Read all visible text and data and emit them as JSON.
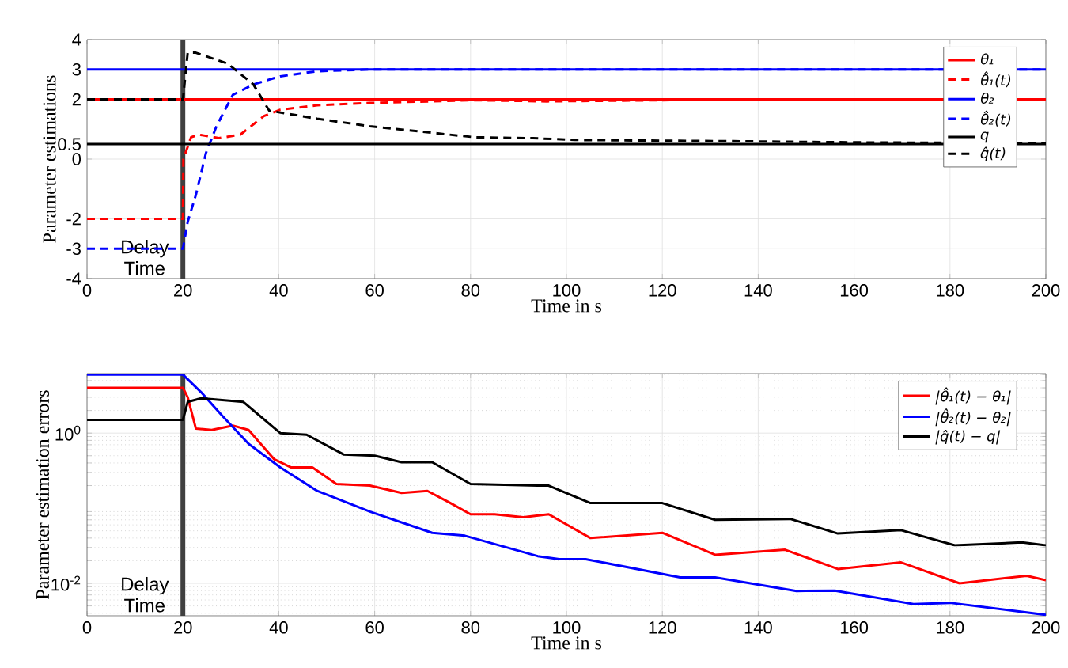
{
  "chart_data": [
    {
      "type": "line",
      "xlabel": "Time in s",
      "ylabel": "Parameter estimations",
      "xlim": [
        0,
        200
      ],
      "ylim": [
        -4,
        4
      ],
      "xticks": [
        0,
        20,
        40,
        60,
        80,
        100,
        120,
        140,
        160,
        180,
        200
      ],
      "yticks": [
        -4,
        -3,
        -2,
        0,
        0.5,
        2,
        3,
        4
      ],
      "grid": true,
      "legend": "top right",
      "ref_lines": [
        {
          "axis": "x",
          "value": 20,
          "label": "Delay Time",
          "color": "#404040"
        }
      ],
      "series": [
        {
          "name": "θ₁",
          "color": "#ff0000",
          "line_style": "solid",
          "x": [
            0,
            200
          ],
          "values": [
            2,
            2
          ]
        },
        {
          "name": "θ̂₁(t)",
          "color": "#ff0000",
          "line_style": "dashed",
          "x": [
            0,
            20,
            20.1,
            21.7,
            23.3,
            27.5,
            32,
            36.9,
            40.3,
            48,
            59,
            81,
            96,
            120,
            160,
            200
          ],
          "values": [
            -2,
            -2,
            0,
            0.73,
            0.82,
            0.7,
            0.82,
            1.44,
            1.65,
            1.8,
            1.88,
            1.97,
            1.93,
            1.97,
            1.99,
            2
          ]
        },
        {
          "name": "θ₂",
          "color": "#0000ff",
          "line_style": "solid",
          "x": [
            0,
            200
          ],
          "values": [
            3,
            3
          ]
        },
        {
          "name": "θ̂₂(t)",
          "color": "#0000ff",
          "line_style": "dashed",
          "x": [
            0,
            20,
            21,
            22.7,
            24.8,
            27,
            30.4,
            34.7,
            40.3,
            48,
            59,
            100,
            200
          ],
          "values": [
            -3,
            -3,
            -2.1,
            -1.2,
            0.2,
            1.1,
            2.15,
            2.5,
            2.77,
            2.94,
            3.0,
            3.0,
            3.0
          ]
        },
        {
          "name": "q",
          "color": "#000000",
          "line_style": "solid",
          "x": [
            0,
            200
          ],
          "values": [
            0.5,
            0.5
          ]
        },
        {
          "name": "q̂(t)",
          "color": "#000000",
          "line_style": "dashed",
          "x": [
            0,
            20,
            21,
            22.7,
            29.3,
            34.7,
            38,
            48,
            59,
            75.5,
            81,
            93,
            101.8,
            134.8,
            161,
            200
          ],
          "values": [
            2,
            2,
            3.56,
            3.56,
            3.2,
            2.5,
            1.62,
            1.35,
            1.1,
            0.82,
            0.73,
            0.7,
            0.64,
            0.6,
            0.56,
            0.53
          ]
        }
      ]
    },
    {
      "type": "line",
      "xlabel": "Time in s",
      "ylabel": "Parameter estimation errors",
      "xlim": [
        0,
        200
      ],
      "ylim": [
        0.0037,
        6.2
      ],
      "log": true,
      "xticks": [
        0,
        20,
        40,
        60,
        80,
        100,
        120,
        140,
        160,
        180,
        200
      ],
      "yticks": [
        {
          "value": 0.01,
          "label": "10$^{-2}$"
        },
        {
          "value": 1,
          "label": "10$^{0}$"
        }
      ],
      "grid": true,
      "legend": "top right",
      "ref_lines": [
        {
          "axis": "x",
          "value": 20,
          "label": "Delay Time",
          "color": "#404040"
        }
      ],
      "series": [
        {
          "name": "|θ̂₁(t) − θ₁|",
          "color": "#ff0000",
          "x": [
            0,
            20,
            21,
            22.7,
            26,
            30.4,
            33.7,
            39,
            42.5,
            47,
            52,
            59,
            65.6,
            71,
            75.5,
            80,
            85,
            91,
            96.3,
            105,
            120,
            131,
            145.6,
            156.6,
            169.8,
            182,
            196,
            200
          ],
          "values": [
            4,
            4,
            3.0,
            1.15,
            1.1,
            1.26,
            1.1,
            0.45,
            0.35,
            0.35,
            0.21,
            0.2,
            0.16,
            0.17,
            0.12,
            0.083,
            0.083,
            0.076,
            0.083,
            0.04,
            0.047,
            0.024,
            0.028,
            0.0155,
            0.019,
            0.01,
            0.0126,
            0.011
          ]
        },
        {
          "name": "|θ̂₂(t) − θ₂|",
          "color": "#0000ff",
          "x": [
            0,
            20,
            23.8,
            28.2,
            33.7,
            40.3,
            48,
            59,
            72,
            78.8,
            94,
            98.5,
            104,
            123.7,
            131,
            148,
            156,
            172.4,
            180,
            200
          ],
          "values": [
            6,
            6,
            3.5,
            1.7,
            0.72,
            0.35,
            0.17,
            0.09,
            0.047,
            0.043,
            0.023,
            0.021,
            0.021,
            0.012,
            0.012,
            0.0079,
            0.008,
            0.0053,
            0.0055,
            0.0038
          ]
        },
        {
          "name": "|q̂(t) − q|",
          "color": "#000000",
          "x": [
            0,
            20,
            21,
            23.8,
            32.6,
            40.3,
            45.8,
            53.5,
            60,
            65.6,
            72,
            80,
            94,
            96.3,
            105,
            120,
            131,
            146.7,
            156.6,
            169.8,
            181,
            195,
            200
          ],
          "values": [
            1.5,
            1.5,
            2.6,
            2.9,
            2.6,
            1.0,
            0.95,
            0.52,
            0.5,
            0.41,
            0.41,
            0.21,
            0.2,
            0.2,
            0.117,
            0.117,
            0.07,
            0.072,
            0.046,
            0.051,
            0.032,
            0.035,
            0.032
          ]
        }
      ]
    }
  ]
}
